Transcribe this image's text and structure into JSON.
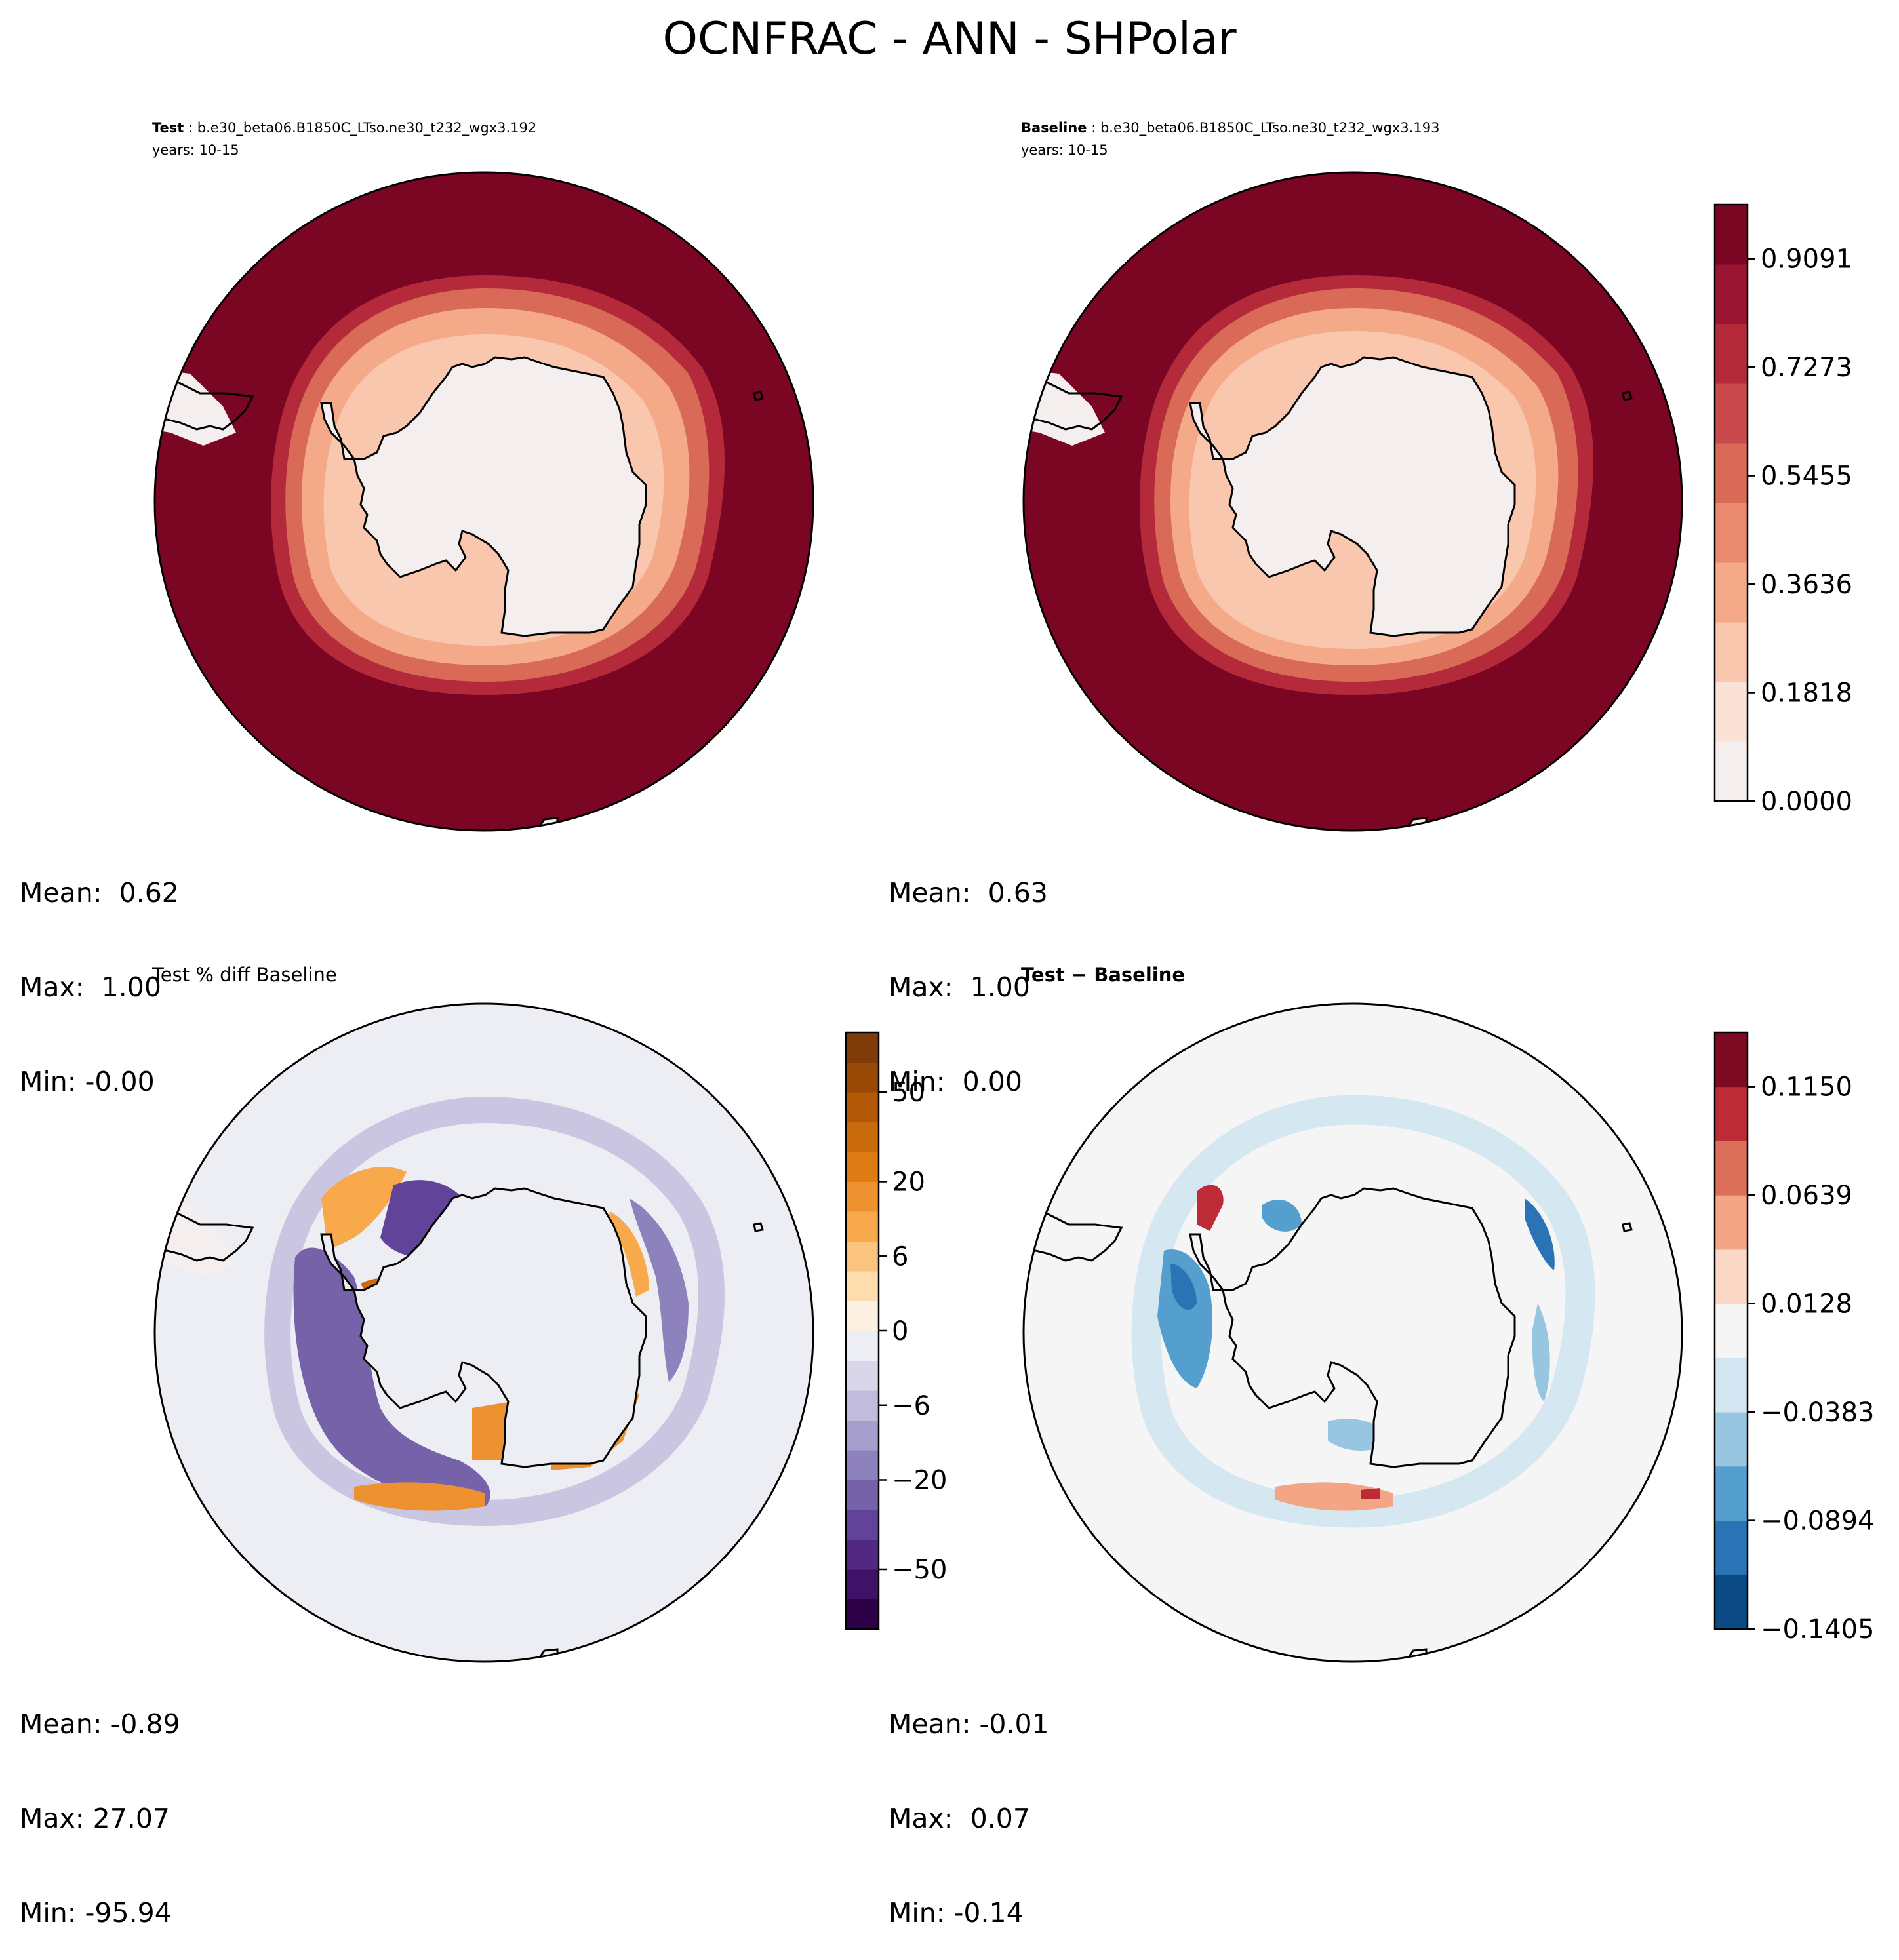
{
  "figure": {
    "title": "OCNFRAC - ANN - SHPolar"
  },
  "panels": {
    "test": {
      "label_bold": "Test",
      "label_rest": " : b.e30_beta06.B1850C_LTso.ne30_t232_wgx3.192",
      "years": "years: 10-15",
      "stats": {
        "mean": "Mean:  0.62",
        "max": "Max:  1.00",
        "min": "Min: -0.00"
      }
    },
    "baseline": {
      "label_bold": "Baseline",
      "label_rest": " : b.e30_beta06.B1850C_LTso.ne30_t232_wgx3.193",
      "years": "years: 10-15",
      "stats": {
        "mean": "Mean:  0.63",
        "max": "Max:  1.00",
        "min": "Min:  0.00"
      }
    },
    "pctdiff": {
      "label": "Test % diff Baseline",
      "stats": {
        "mean": "Mean: -0.89",
        "max": "Max: 27.07",
        "min": "Min: -95.94"
      }
    },
    "diff": {
      "label": "Test − Baseline",
      "stats": {
        "mean": "Mean: -0.01",
        "max": "Max:  0.07",
        "min": "Min: -0.14"
      }
    }
  },
  "chart_data": [
    {
      "type": "heatmap",
      "name": "test",
      "projection": "south-polar-stereographic",
      "values": {
        "land": 0.0,
        "ocean": 1.0,
        "mean": 0.62,
        "max": 1.0,
        "min": -0.0
      },
      "colorbar": "shared-ocnfrac"
    },
    {
      "type": "heatmap",
      "name": "baseline",
      "projection": "south-polar-stereographic",
      "values": {
        "land": 0.0,
        "ocean": 1.0,
        "mean": 0.63,
        "max": 1.0,
        "min": 0.0
      },
      "colorbar": {
        "ticks": [
          "0.0000",
          "0.1818",
          "0.3636",
          "0.5455",
          "0.7273",
          "0.9091"
        ],
        "levels": 11,
        "range": [
          0,
          1
        ],
        "colors": [
          "#f4efee",
          "#fbe2d6",
          "#f9c6ae",
          "#f4a989",
          "#e98a6e",
          "#d96a57",
          "#c94a4c",
          "#b52a3a",
          "#9a1532",
          "#7a0623"
        ]
      }
    },
    {
      "type": "heatmap",
      "name": "pctdiff",
      "projection": "south-polar-stereographic",
      "values": {
        "mean": -0.89,
        "max": 27.07,
        "min": -95.94
      },
      "colorbar": {
        "ticks": [
          "−50",
          "−20",
          "−6",
          "0",
          "6",
          "20",
          "50"
        ],
        "scale": "symlog",
        "colors": [
          "#2d0048",
          "#3f1268",
          "#522882",
          "#62439a",
          "#7562a9",
          "#8d82bb",
          "#a69ecd",
          "#c1bbdd",
          "#d9d6ea",
          "#edeef3",
          "#fbf0e2",
          "#fddcad",
          "#fbc47e",
          "#f7a94c",
          "#ee9231",
          "#de7b14",
          "#c96a0c",
          "#b25806",
          "#984905",
          "#7f3b08"
        ]
      }
    },
    {
      "type": "heatmap",
      "name": "diff",
      "projection": "south-polar-stereographic",
      "values": {
        "mean": -0.01,
        "max": 0.07,
        "min": -0.14
      },
      "colorbar": {
        "ticks": [
          "−0.1405",
          "−0.0894",
          "−0.0383",
          "0.0128",
          "0.0639",
          "0.1150"
        ],
        "range": [
          -0.1405,
          0.14
        ],
        "colors": [
          "#0c4a85",
          "#2a73b5",
          "#549fcd",
          "#98c6e0",
          "#d2e5f0",
          "#f5f5f5",
          "#fbd7c5",
          "#f3a586",
          "#dc6f5a",
          "#bd2b37",
          "#7f0a23"
        ]
      }
    }
  ]
}
